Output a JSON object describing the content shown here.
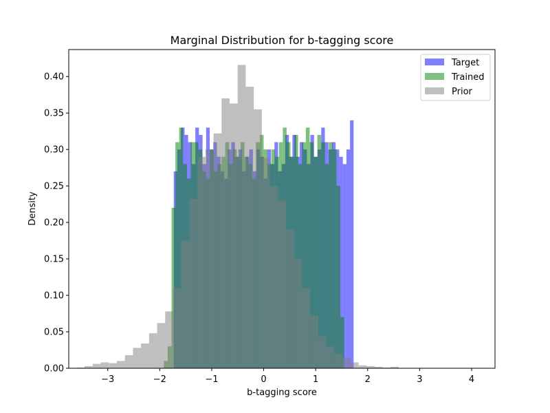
{
  "chart_data": {
    "type": "bar",
    "subtype": "overlaid-histogram",
    "title": "Marginal Distribution for b-tagging score",
    "xlabel": "b-tagging score",
    "ylabel": "Density",
    "xlim": [
      -3.75,
      4.45
    ],
    "ylim": [
      0.0,
      0.437
    ],
    "xticks": [
      -3,
      -2,
      -1,
      0,
      1,
      2,
      3,
      4
    ],
    "xtick_labels": [
      "−3",
      "−2",
      "−1",
      "0",
      "1",
      "2",
      "3",
      "4"
    ],
    "yticks": [
      0.0,
      0.05,
      0.1,
      0.15,
      0.2,
      0.25,
      0.3,
      0.35,
      0.4
    ],
    "ytick_labels": [
      "0.00",
      "0.05",
      "0.10",
      "0.15",
      "0.20",
      "0.25",
      "0.30",
      "0.35",
      "0.40"
    ],
    "grid": false,
    "legend_position": "top-right",
    "series": [
      {
        "name": "Target",
        "color": "#0000ff",
        "alpha": 0.5,
        "bin_start": -1.73,
        "bin_width": 0.0692,
        "values": [
          0.27,
          0.3,
          0.33,
          0.32,
          0.31,
          0.28,
          0.33,
          0.32,
          0.28,
          0.33,
          0.3,
          0.31,
          0.29,
          0.27,
          0.26,
          0.3,
          0.31,
          0.29,
          0.3,
          0.27,
          0.29,
          0.3,
          0.27,
          0.3,
          0.29,
          0.26,
          0.3,
          0.28,
          0.31,
          0.27,
          0.28,
          0.32,
          0.29,
          0.32,
          0.29,
          0.31,
          0.3,
          0.28,
          0.32,
          0.29,
          0.3,
          0.33,
          0.31,
          0.3,
          0.31,
          0.3,
          0.29,
          0.28,
          0.3,
          0.34
        ]
      },
      {
        "name": "Trained",
        "color": "#008000",
        "alpha": 0.5,
        "bin_start": -1.92,
        "bin_width": 0.0738,
        "values": [
          0.01,
          0.03,
          0.22,
          0.31,
          0.33,
          0.28,
          0.26,
          0.31,
          0.31,
          0.3,
          0.27,
          0.26,
          0.3,
          0.27,
          0.28,
          0.29,
          0.31,
          0.28,
          0.3,
          0.29,
          0.31,
          0.29,
          0.28,
          0.26,
          0.31,
          0.32,
          0.3,
          0.28,
          0.3,
          0.29,
          0.31,
          0.33,
          0.31,
          0.29,
          0.32,
          0.28,
          0.31,
          0.33,
          0.31,
          0.29,
          0.32,
          0.31,
          0.28,
          0.31,
          0.3,
          0.25,
          0.07
        ]
      },
      {
        "name": "Prior",
        "color": "#808080",
        "alpha": 0.5,
        "bin_start": -3.6,
        "bin_width": 0.155,
        "values": [
          0.001,
          0.003,
          0.006,
          0.008,
          0.007,
          0.01,
          0.018,
          0.028,
          0.034,
          0.048,
          0.062,
          0.078,
          0.11,
          0.175,
          0.232,
          0.29,
          0.3,
          0.322,
          0.37,
          0.363,
          0.416,
          0.386,
          0.355,
          0.288,
          0.25,
          0.23,
          0.19,
          0.15,
          0.11,
          0.072,
          0.044,
          0.03,
          0.02,
          0.014,
          0.008,
          0.004,
          0.003,
          0.002,
          0.001,
          0.002
        ]
      }
    ]
  }
}
